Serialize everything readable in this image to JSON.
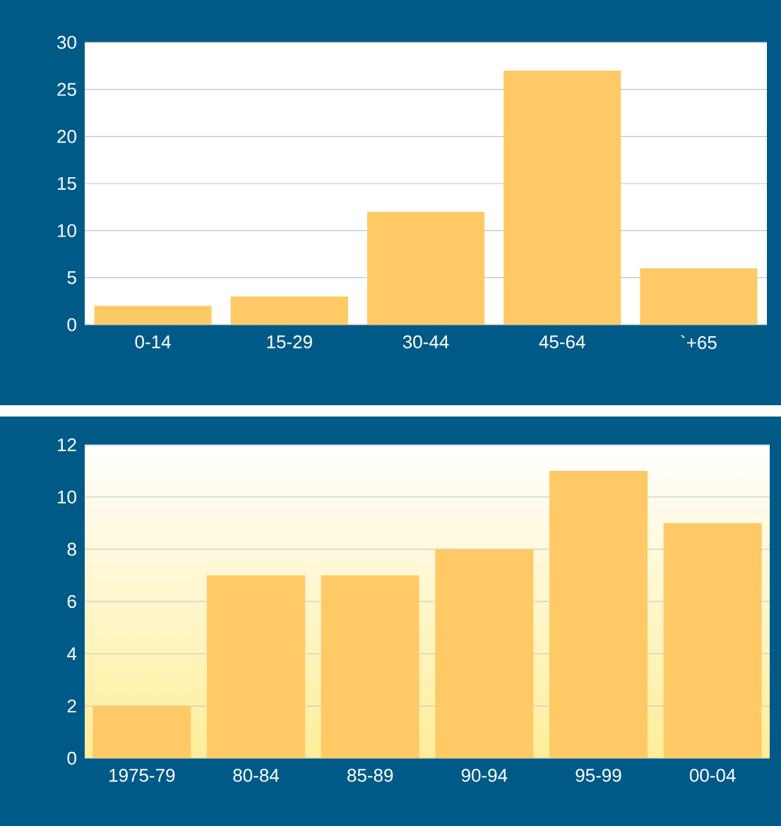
{
  "chart_data": [
    {
      "type": "bar",
      "categories": [
        "0-14",
        "15-29",
        "30-44",
        "45-64",
        "`+65"
      ],
      "values": [
        2,
        3,
        12,
        27,
        6
      ],
      "color": "#ffc966",
      "ylim": [
        0,
        30
      ],
      "yticks": [
        0,
        5,
        10,
        15,
        20,
        25,
        30
      ],
      "grid": "y"
    },
    {
      "type": "bar",
      "categories": [
        "1975-79",
        "80-84",
        "85-89",
        "90-94",
        "95-99",
        "00-04"
      ],
      "values": [
        2,
        7,
        7,
        8,
        11,
        9
      ],
      "color": "#ffc966",
      "ylim": [
        0,
        12
      ],
      "yticks": [
        0,
        2,
        4,
        6,
        8,
        10,
        12
      ],
      "grid": "y"
    }
  ]
}
